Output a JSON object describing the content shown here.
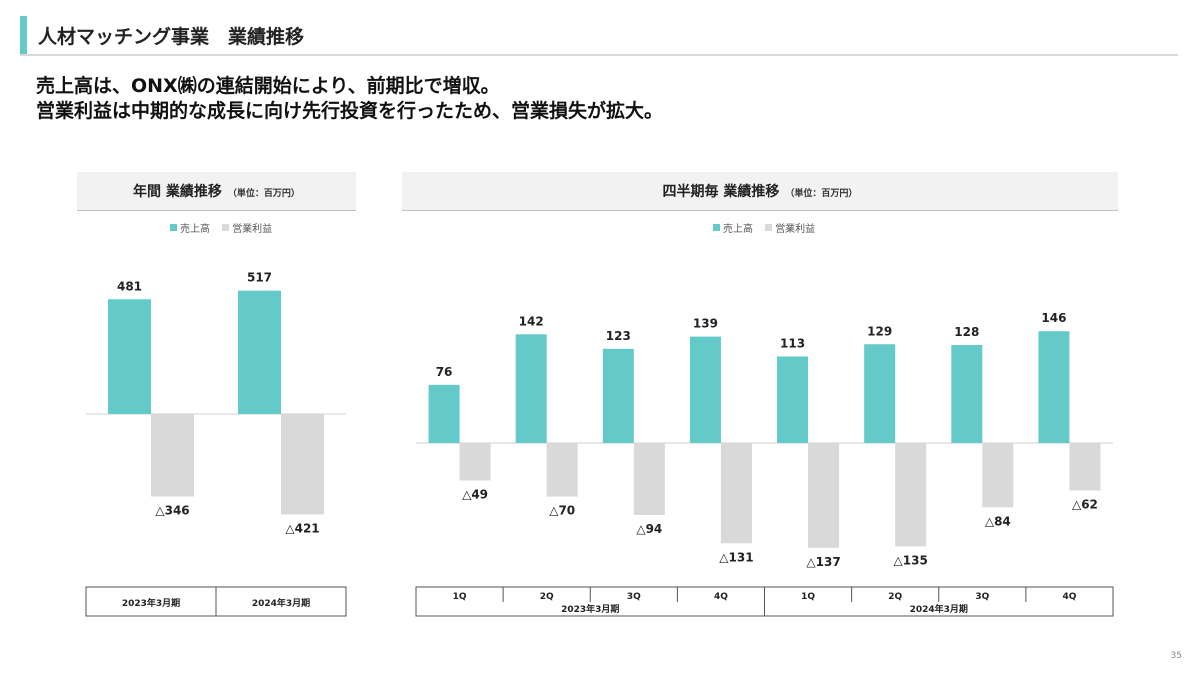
{
  "header": {
    "title": "人材マッチング事業　業績推移"
  },
  "headline": {
    "line1": "売上高は、ONX㈱の連結開始により、前期比で増収。",
    "line2": "営業利益は中期的な成長に向け先行投資を行ったため、営業損失が拡大。"
  },
  "colors": {
    "accent": "#63c9c9",
    "revenue": "#63c9c9",
    "profit": "#d9d9d9"
  },
  "page_number": "35",
  "chart_data": [
    {
      "type": "bar",
      "title": "年間 業績推移",
      "unit": "（単位：百万円）",
      "legend": [
        "売上高",
        "営業利益"
      ],
      "legend_position": "top-center",
      "categories": [
        "2023年3月期",
        "2024年3月期"
      ],
      "series": [
        {
          "name": "売上高",
          "values": [
            481,
            517
          ],
          "labels": [
            "481",
            "517"
          ]
        },
        {
          "name": "営業利益",
          "values": [
            -346,
            -421
          ],
          "labels": [
            "△346",
            "△421"
          ]
        }
      ],
      "grid": false
    },
    {
      "type": "bar",
      "title": "四半期毎 業績推移",
      "unit": "（単位：百万円）",
      "legend": [
        "売上高",
        "営業利益"
      ],
      "legend_position": "top-center",
      "categories": [
        "1Q",
        "2Q",
        "3Q",
        "4Q",
        "1Q",
        "2Q",
        "3Q",
        "4Q"
      ],
      "groups": [
        {
          "label": "2023年3月期",
          "span": 4
        },
        {
          "label": "2024年3月期",
          "span": 4
        }
      ],
      "series": [
        {
          "name": "売上高",
          "values": [
            76,
            142,
            123,
            139,
            113,
            129,
            128,
            146
          ],
          "labels": [
            "76",
            "142",
            "123",
            "139",
            "113",
            "129",
            "128",
            "146"
          ]
        },
        {
          "name": "営業利益",
          "values": [
            -49,
            -70,
            -94,
            -131,
            -137,
            -135,
            -84,
            -62
          ],
          "labels": [
            "△49",
            "△70",
            "△94",
            "△131",
            "△137",
            "△135",
            "△84",
            "△62"
          ]
        }
      ],
      "grid": false
    }
  ]
}
